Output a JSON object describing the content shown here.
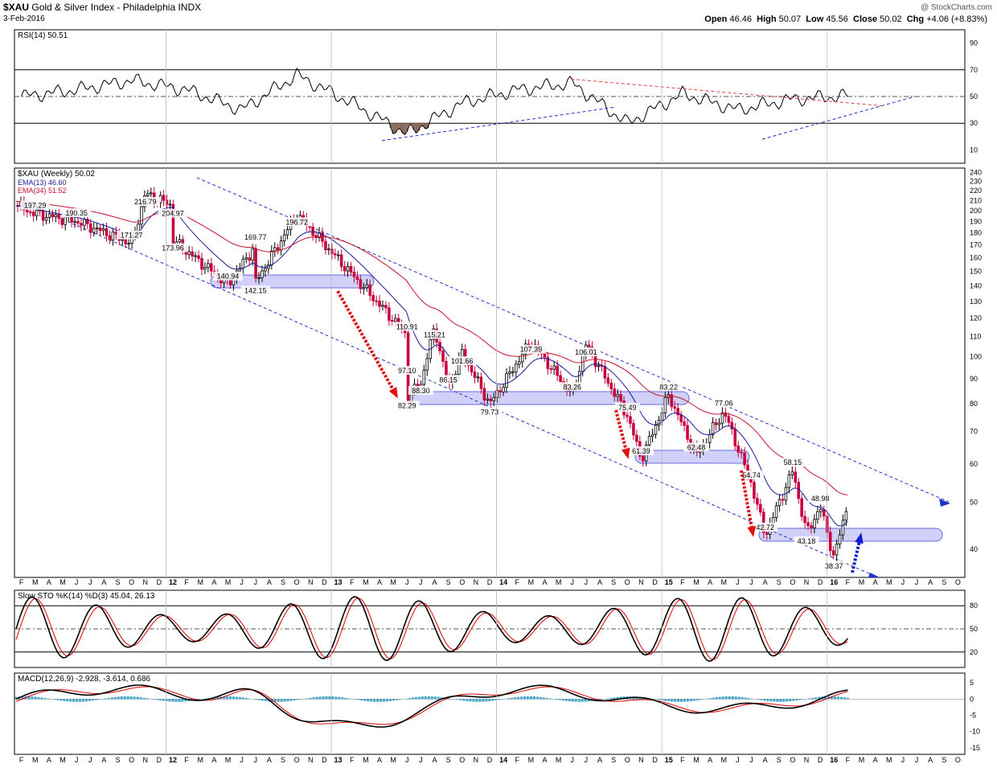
{
  "header": {
    "symbol": "$XAU",
    "name": "Gold & Silver Index - Philadelphia",
    "exchange": "INDX",
    "date": "3-Feb-2016",
    "ohlc_text": "Open 46.46  High 50.07  Low 45.56  Close 50.02  Chg +4.06 (+8.83%)",
    "ohlc": {
      "open_label": "Open",
      "open": "46.46",
      "high_label": "High",
      "high": "50.07",
      "low_label": "Low",
      "low": "45.56",
      "close_label": "Close",
      "close": "50.02",
      "chg_label": "Chg",
      "chg": "+4.06 (+8.83%)"
    },
    "watermark": "@ StockCharts.com"
  },
  "colors": {
    "up": "#000000",
    "down": "#c8003c",
    "ema13": "#1a1a9a",
    "ema34": "#c8102e",
    "channel": "#2233cc",
    "zone": "rgba(120,120,235,0.35)",
    "arrow_red": "#e01010",
    "arrow_blue": "#1020d0",
    "rsi_fill": "#8c6a5e",
    "hist": "#3aa0c8"
  },
  "chart_data": [
    {
      "type": "line",
      "title": "RSI(14) 50.51",
      "y_ticks": [
        10,
        30,
        50,
        70,
        90
      ],
      "ylim": [
        0,
        100
      ],
      "reference_lines": [
        30,
        50,
        70
      ],
      "x": [
        "2011-02",
        "2011-06",
        "2011-10",
        "2012-02",
        "2012-06",
        "2012-10",
        "2013-02",
        "2013-06",
        "2013-10",
        "2014-02",
        "2014-06",
        "2014-10",
        "2015-02",
        "2015-06",
        "2015-10",
        "2016-02"
      ],
      "values": [
        50,
        55,
        62,
        55,
        40,
        66,
        45,
        22,
        45,
        55,
        60,
        30,
        52,
        40,
        48,
        50.51
      ]
    },
    {
      "type": "candlestick",
      "title": "$XAU (Weekly) 50.02",
      "series": [
        {
          "name": "EMA(13) 46.60"
        },
        {
          "name": "EMA(34) 51.52"
        }
      ],
      "y_scale": "log",
      "y_ticks": [
        40,
        50,
        60,
        70,
        80,
        90,
        100,
        110,
        120,
        130,
        140,
        150,
        160,
        170,
        180,
        190,
        200,
        210,
        220,
        230,
        240
      ],
      "ylim": [
        35,
        245
      ],
      "annotations": [
        {
          "text": "197.29",
          "x": "2011-03",
          "y": 197.29
        },
        {
          "text": "216.79",
          "x": "2011-11",
          "y": 216.79
        },
        {
          "text": "190.35",
          "x": "2011-06",
          "y": 190.35
        },
        {
          "text": "204.97",
          "x": "2012-01",
          "y": 204.97
        },
        {
          "text": "171.27",
          "x": "2011-10",
          "y": 171.27
        },
        {
          "text": "173.96",
          "x": "2012-01",
          "y": 173.96
        },
        {
          "text": "169.77",
          "x": "2012-07",
          "y": 169.77
        },
        {
          "text": "196.72",
          "x": "2012-10",
          "y": 196.72
        },
        {
          "text": "140.94",
          "x": "2012-05",
          "y": 140.94
        },
        {
          "text": "142.15",
          "x": "2012-07",
          "y": 142.15
        },
        {
          "text": "110.91",
          "x": "2013-06",
          "y": 110.91
        },
        {
          "text": "97.10",
          "x": "2013-06",
          "y": 97.1
        },
        {
          "text": "115.21",
          "x": "2013-08",
          "y": 115.21
        },
        {
          "text": "101.66",
          "x": "2013-10",
          "y": 101.66
        },
        {
          "text": "88.30",
          "x": "2013-07",
          "y": 88.3
        },
        {
          "text": "86.15",
          "x": "2013-09",
          "y": 86.15
        },
        {
          "text": "82.29",
          "x": "2013-06",
          "y": 82.29
        },
        {
          "text": "79.73",
          "x": "2013-12",
          "y": 79.73
        },
        {
          "text": "107.39",
          "x": "2014-03",
          "y": 107.39
        },
        {
          "text": "83.26",
          "x": "2014-06",
          "y": 83.26
        },
        {
          "text": "106.01",
          "x": "2014-07",
          "y": 106.01
        },
        {
          "text": "75.49",
          "x": "2014-10",
          "y": 75.49
        },
        {
          "text": "83.22",
          "x": "2015-01",
          "y": 83.22
        },
        {
          "text": "61.39",
          "x": "2014-11",
          "y": 61.39
        },
        {
          "text": "62.48",
          "x": "2015-03",
          "y": 62.48
        },
        {
          "text": "77.06",
          "x": "2015-05",
          "y": 77.06
        },
        {
          "text": "54.74",
          "x": "2015-07",
          "y": 54.74
        },
        {
          "text": "58.15",
          "x": "2015-10",
          "y": 58.15
        },
        {
          "text": "42.72",
          "x": "2015-08",
          "y": 42.72
        },
        {
          "text": "48.98",
          "x": "2015-12",
          "y": 48.98
        },
        {
          "text": "43.18",
          "x": "2015-11",
          "y": 43.18
        },
        {
          "text": "38.37",
          "x": "2016-01",
          "y": 38.37
        }
      ]
    },
    {
      "type": "line",
      "title": "Slow STO %K(14) %D(3) 45.04, 26.13",
      "y_ticks": [
        20,
        50,
        80
      ],
      "ylim": [
        0,
        100
      ],
      "reference_lines": [
        20,
        50,
        80
      ]
    },
    {
      "type": "line",
      "title": "MACD(12,26,9) -2.928, -3.614, 0.686",
      "y_ticks": [
        5,
        0,
        -5,
        -10,
        -15
      ],
      "ylim": [
        -17,
        8
      ]
    }
  ],
  "x_axis": {
    "labels": [
      "F",
      "M",
      "A",
      "M",
      "J",
      "J",
      "A",
      "S",
      "O",
      "N",
      "D",
      "12",
      "F",
      "M",
      "A",
      "M",
      "J",
      "J",
      "A",
      "S",
      "O",
      "N",
      "D",
      "13",
      "F",
      "M",
      "A",
      "M",
      "J",
      "J",
      "A",
      "S",
      "O",
      "N",
      "D",
      "14",
      "F",
      "M",
      "A",
      "M",
      "J",
      "J",
      "A",
      "S",
      "O",
      "N",
      "D",
      "15",
      "F",
      "M",
      "A",
      "M",
      "J",
      "J",
      "A",
      "S",
      "O",
      "N",
      "D",
      "16",
      "F",
      "M",
      "A",
      "M",
      "J",
      "J",
      "A",
      "S",
      "O"
    ],
    "bold_labels": [
      "12",
      "13",
      "14",
      "15",
      "16"
    ]
  }
}
